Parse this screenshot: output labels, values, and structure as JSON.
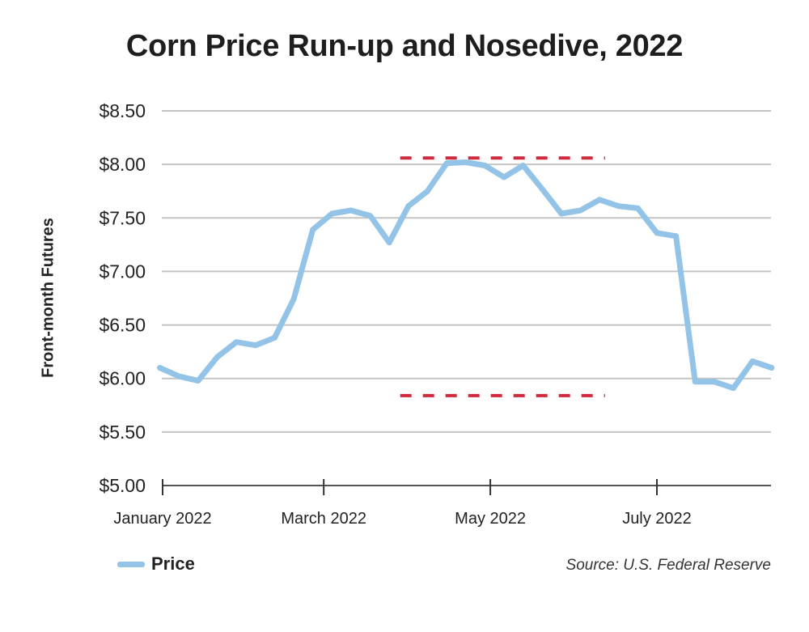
{
  "chart_data": {
    "type": "line",
    "title": "Corn Price Run-up and Nosedive, 2022",
    "xlabel": "",
    "ylabel": "Front-month Futures",
    "ylim": [
      5.0,
      8.5
    ],
    "yticks": [
      5.0,
      5.5,
      6.0,
      6.5,
      7.0,
      7.5,
      8.0,
      8.5
    ],
    "ytick_labels": [
      "$5.00",
      "$5.50",
      "$6.00",
      "$6.50",
      "$7.00",
      "$7.50",
      "$8.00",
      "$8.50"
    ],
    "xticks": [
      "2022-01-01",
      "2022-03-01",
      "2022-05-01",
      "2022-07-01"
    ],
    "xtick_labels": [
      "January 2022",
      "March 2022",
      "May 2022",
      "July 2022"
    ],
    "grid": "horizontal",
    "legend": "bottom-left",
    "series": [
      {
        "name": "Price",
        "color": "#93c4e8",
        "x": [
          "2021-12-31",
          "2022-01-07",
          "2022-01-14",
          "2022-01-21",
          "2022-01-28",
          "2022-02-04",
          "2022-02-11",
          "2022-02-18",
          "2022-02-25",
          "2022-03-04",
          "2022-03-11",
          "2022-03-18",
          "2022-03-25",
          "2022-04-01",
          "2022-04-08",
          "2022-04-15",
          "2022-04-22",
          "2022-04-29",
          "2022-05-06",
          "2022-05-13",
          "2022-05-20",
          "2022-05-27",
          "2022-06-03",
          "2022-06-10",
          "2022-06-17",
          "2022-06-24",
          "2022-07-01",
          "2022-07-08",
          "2022-07-15",
          "2022-07-22",
          "2022-07-29",
          "2022-08-05",
          "2022-08-12"
        ],
        "values": [
          6.1,
          6.02,
          5.98,
          6.2,
          6.34,
          6.31,
          6.38,
          6.74,
          7.39,
          7.54,
          7.57,
          7.52,
          7.27,
          7.61,
          7.75,
          8.01,
          8.02,
          7.99,
          7.88,
          7.99,
          7.77,
          7.54,
          7.57,
          7.67,
          7.61,
          7.59,
          7.36,
          7.33,
          5.97,
          5.97,
          5.91,
          6.16,
          6.1
        ]
      }
    ],
    "annotations": [
      {
        "type": "dashed-hline",
        "y": 8.06,
        "x_range": [
          "2022-03-29",
          "2022-06-12"
        ],
        "color": "#d2283c"
      },
      {
        "type": "dashed-hline",
        "y": 5.84,
        "x_range": [
          "2022-03-29",
          "2022-06-12"
        ],
        "color": "#d2283c"
      }
    ],
    "source": "Source: U.S. Federal Reserve"
  }
}
